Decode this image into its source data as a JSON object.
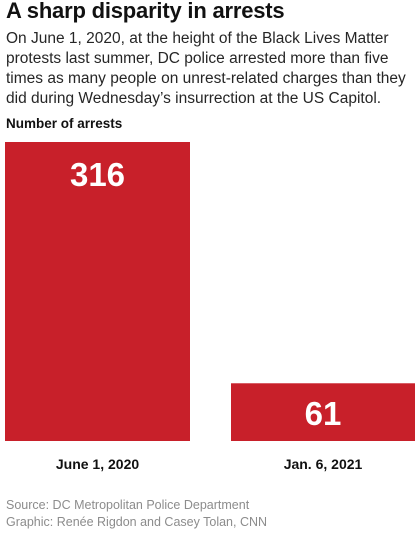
{
  "header": {
    "title": "A sharp disparity in arrests",
    "subtitle": "On June 1, 2020, at the height of the Black Lives Matter protests last summer, DC police arrested more than five times as many people on unrest-related charges than they did during Wednesday’s insurrection at the US Capitol."
  },
  "colors": {
    "bar": "#c8202a",
    "label_on_bar": "#ffffff",
    "text": "#111111",
    "footer": "#8c8c8c"
  },
  "chart_data": {
    "type": "bar",
    "ylabel": "Number of arrests",
    "xlabel": "",
    "categories": [
      "June 1, 2020",
      "Jan. 6, 2021"
    ],
    "values": [
      316,
      61
    ],
    "data_labels": [
      "316",
      "61"
    ],
    "ylim": [
      0,
      316
    ],
    "grid": false,
    "legend": "none"
  },
  "footer": {
    "source": "Source: DC Metropolitan Police Department",
    "credit": "Graphic: Renée Rigdon and Casey Tolan, CNN"
  }
}
